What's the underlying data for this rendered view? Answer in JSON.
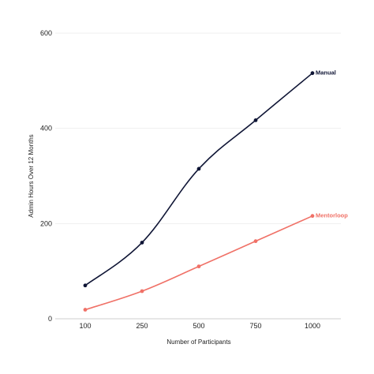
{
  "chart_data": {
    "type": "line",
    "title": "",
    "xlabel": "Number of Participants",
    "ylabel": "Admin Hours Over 12 Months",
    "categories": [
      "100",
      "250",
      "500",
      "750",
      "1000"
    ],
    "yticks": [
      "0",
      "200",
      "400",
      "600"
    ],
    "ylim": [
      0,
      600
    ],
    "grid": true,
    "legend": "inline labels at line ends",
    "series": [
      {
        "name": "Manual",
        "color": "#0f1535",
        "values": [
          70,
          160,
          315,
          417,
          516
        ]
      },
      {
        "name": "Mentorloop",
        "color": "#f07167",
        "values": [
          19,
          58,
          110,
          163,
          216
        ]
      }
    ]
  }
}
